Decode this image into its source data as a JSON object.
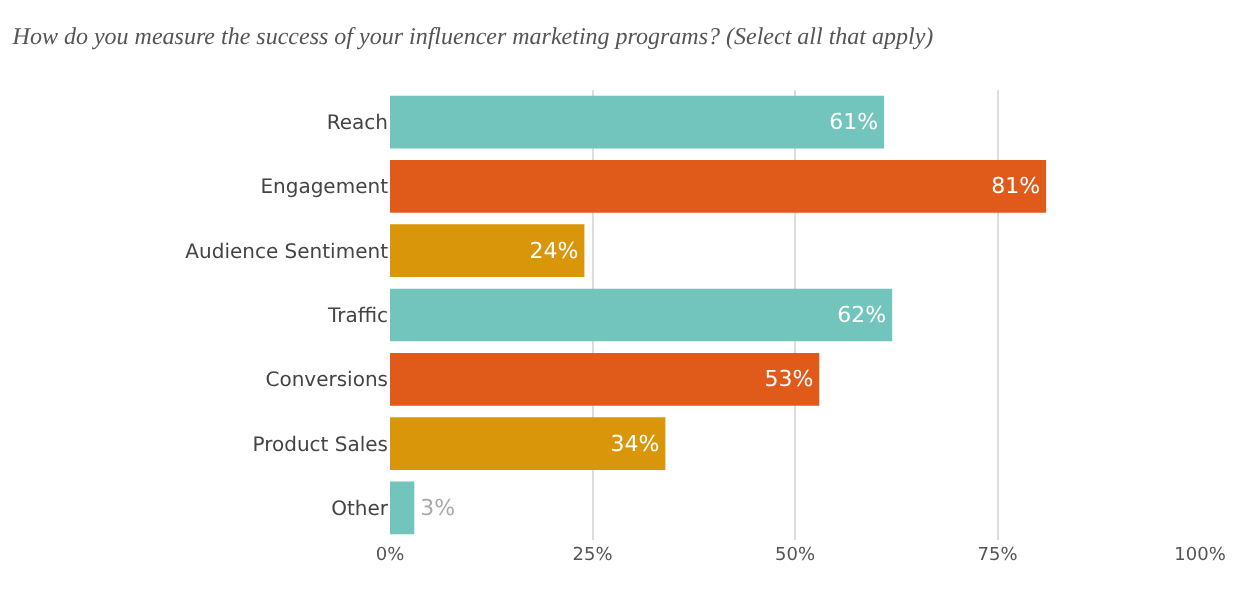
{
  "chart_data": {
    "type": "bar",
    "orientation": "horizontal",
    "title": "How do you measure the success of your influencer marketing programs? (Select all that apply)",
    "categories": [
      "Reach",
      "Engagement",
      "Audience Sentiment",
      "Traffic",
      "Conversions",
      "Product Sales",
      "Other"
    ],
    "values": [
      61,
      81,
      24,
      62,
      53,
      34,
      3
    ],
    "colors": [
      "#72c5bd",
      "#e05a1a",
      "#d9960b",
      "#72c5bd",
      "#e05a1a",
      "#d9960b",
      "#72c5bd"
    ],
    "value_labels": [
      "61%",
      "81%",
      "24%",
      "62%",
      "53%",
      "34%",
      "3%"
    ],
    "xlim": [
      0,
      100
    ],
    "xticks": [
      {
        "value": 0,
        "label": "0%"
      },
      {
        "value": 25,
        "label": "25%"
      },
      {
        "value": 50,
        "label": "50%"
      },
      {
        "value": 75,
        "label": "75%"
      },
      {
        "value": 100,
        "label": "100%"
      }
    ],
    "grid": "x"
  }
}
